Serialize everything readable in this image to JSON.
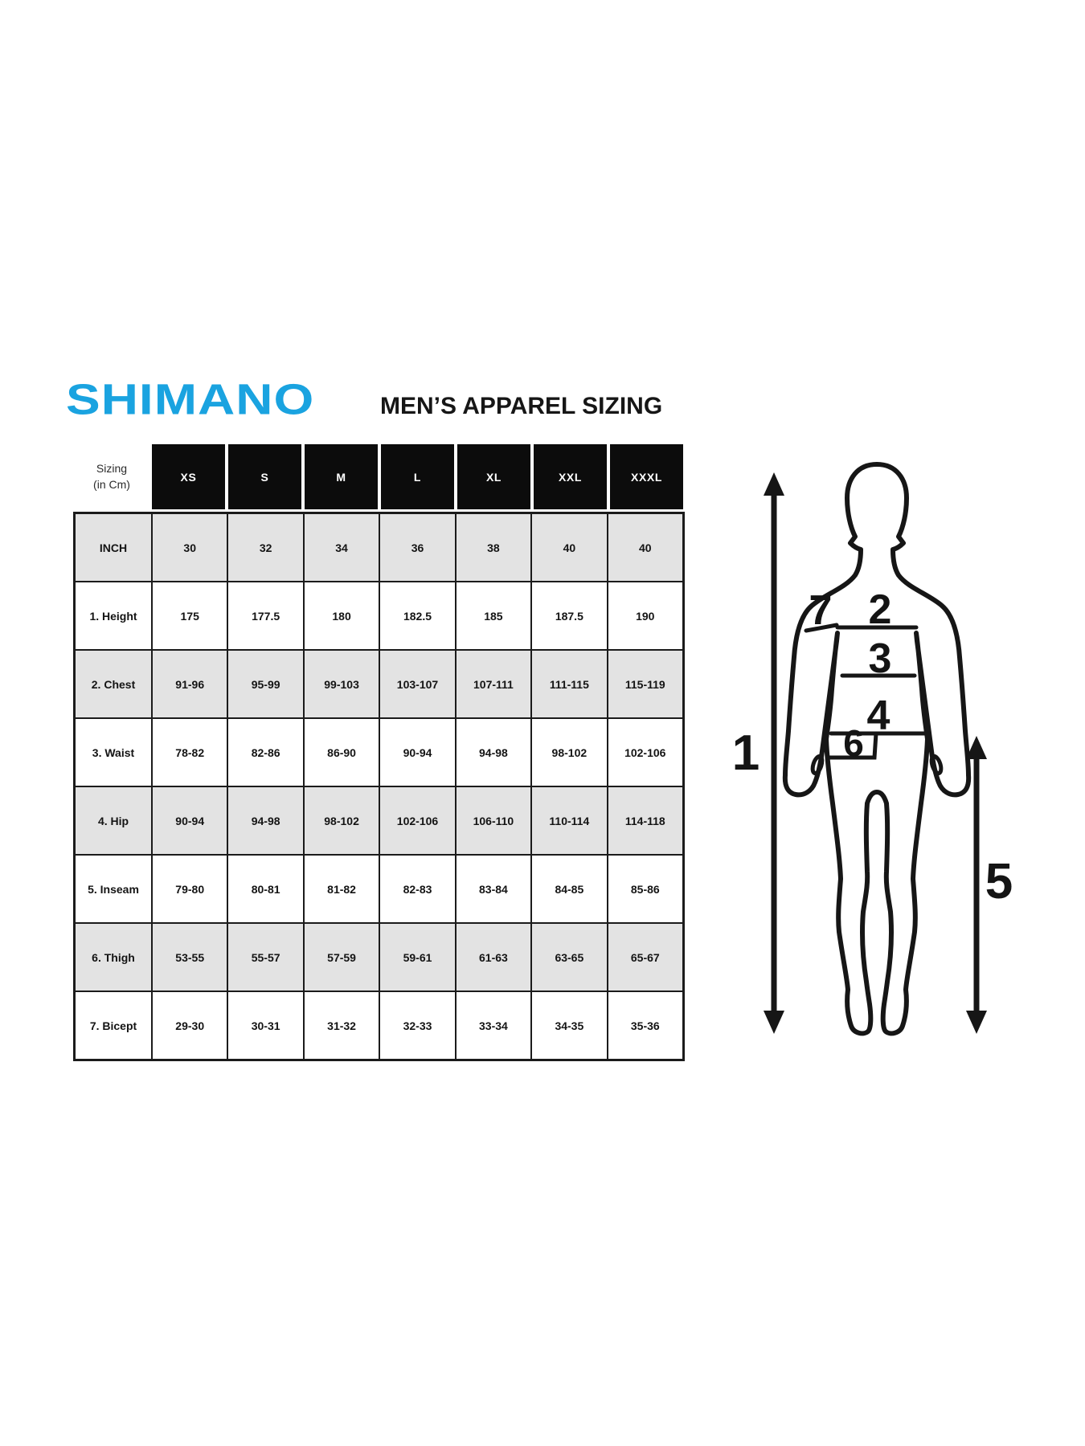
{
  "header": {
    "logo_text": "SHIMANO",
    "title": "MEN’S APPAREL SIZING"
  },
  "colors": {
    "brand_blue": "#1aa3e0",
    "header_cell_bg": "#0c0c0c",
    "shaded_row_bg": "#e3e3e3",
    "line_black": "#161616"
  },
  "table": {
    "corner_label_line1": "Sizing",
    "corner_label_line2": "(in Cm)",
    "size_columns": [
      "XS",
      "S",
      "M",
      "L",
      "XL",
      "XXL",
      "XXXL"
    ],
    "rows": [
      {
        "label": "INCH",
        "shaded": true,
        "values": [
          "30",
          "32",
          "34",
          "36",
          "38",
          "40",
          "40"
        ]
      },
      {
        "label": "1. Height",
        "shaded": false,
        "values": [
          "175",
          "177.5",
          "180",
          "182.5",
          "185",
          "187.5",
          "190"
        ]
      },
      {
        "label": "2. Chest",
        "shaded": true,
        "values": [
          "91-96",
          "95-99",
          "99-103",
          "103-107",
          "107-111",
          "111-115",
          "115-119"
        ]
      },
      {
        "label": "3. Waist",
        "shaded": false,
        "values": [
          "78-82",
          "82-86",
          "86-90",
          "90-94",
          "94-98",
          "98-102",
          "102-106"
        ]
      },
      {
        "label": "4. Hip",
        "shaded": true,
        "values": [
          "90-94",
          "94-98",
          "98-102",
          "102-106",
          "106-110",
          "110-114",
          "114-118"
        ]
      },
      {
        "label": "5. Inseam",
        "shaded": false,
        "values": [
          "79-80",
          "80-81",
          "81-82",
          "82-83",
          "83-84",
          "84-85",
          "85-86"
        ]
      },
      {
        "label": "6. Thigh",
        "shaded": true,
        "values": [
          "53-55",
          "55-57",
          "57-59",
          "59-61",
          "61-63",
          "63-65",
          "65-67"
        ]
      },
      {
        "label": "7. Bicept",
        "shaded": false,
        "values": [
          "29-30",
          "30-31",
          "31-32",
          "32-33",
          "33-34",
          "34-35",
          "35-36"
        ]
      }
    ]
  },
  "diagram": {
    "labels": {
      "height": "1",
      "chest": "2",
      "waist": "3",
      "hip": "4",
      "inseam": "5",
      "thigh": "6",
      "bicept": "7"
    }
  }
}
